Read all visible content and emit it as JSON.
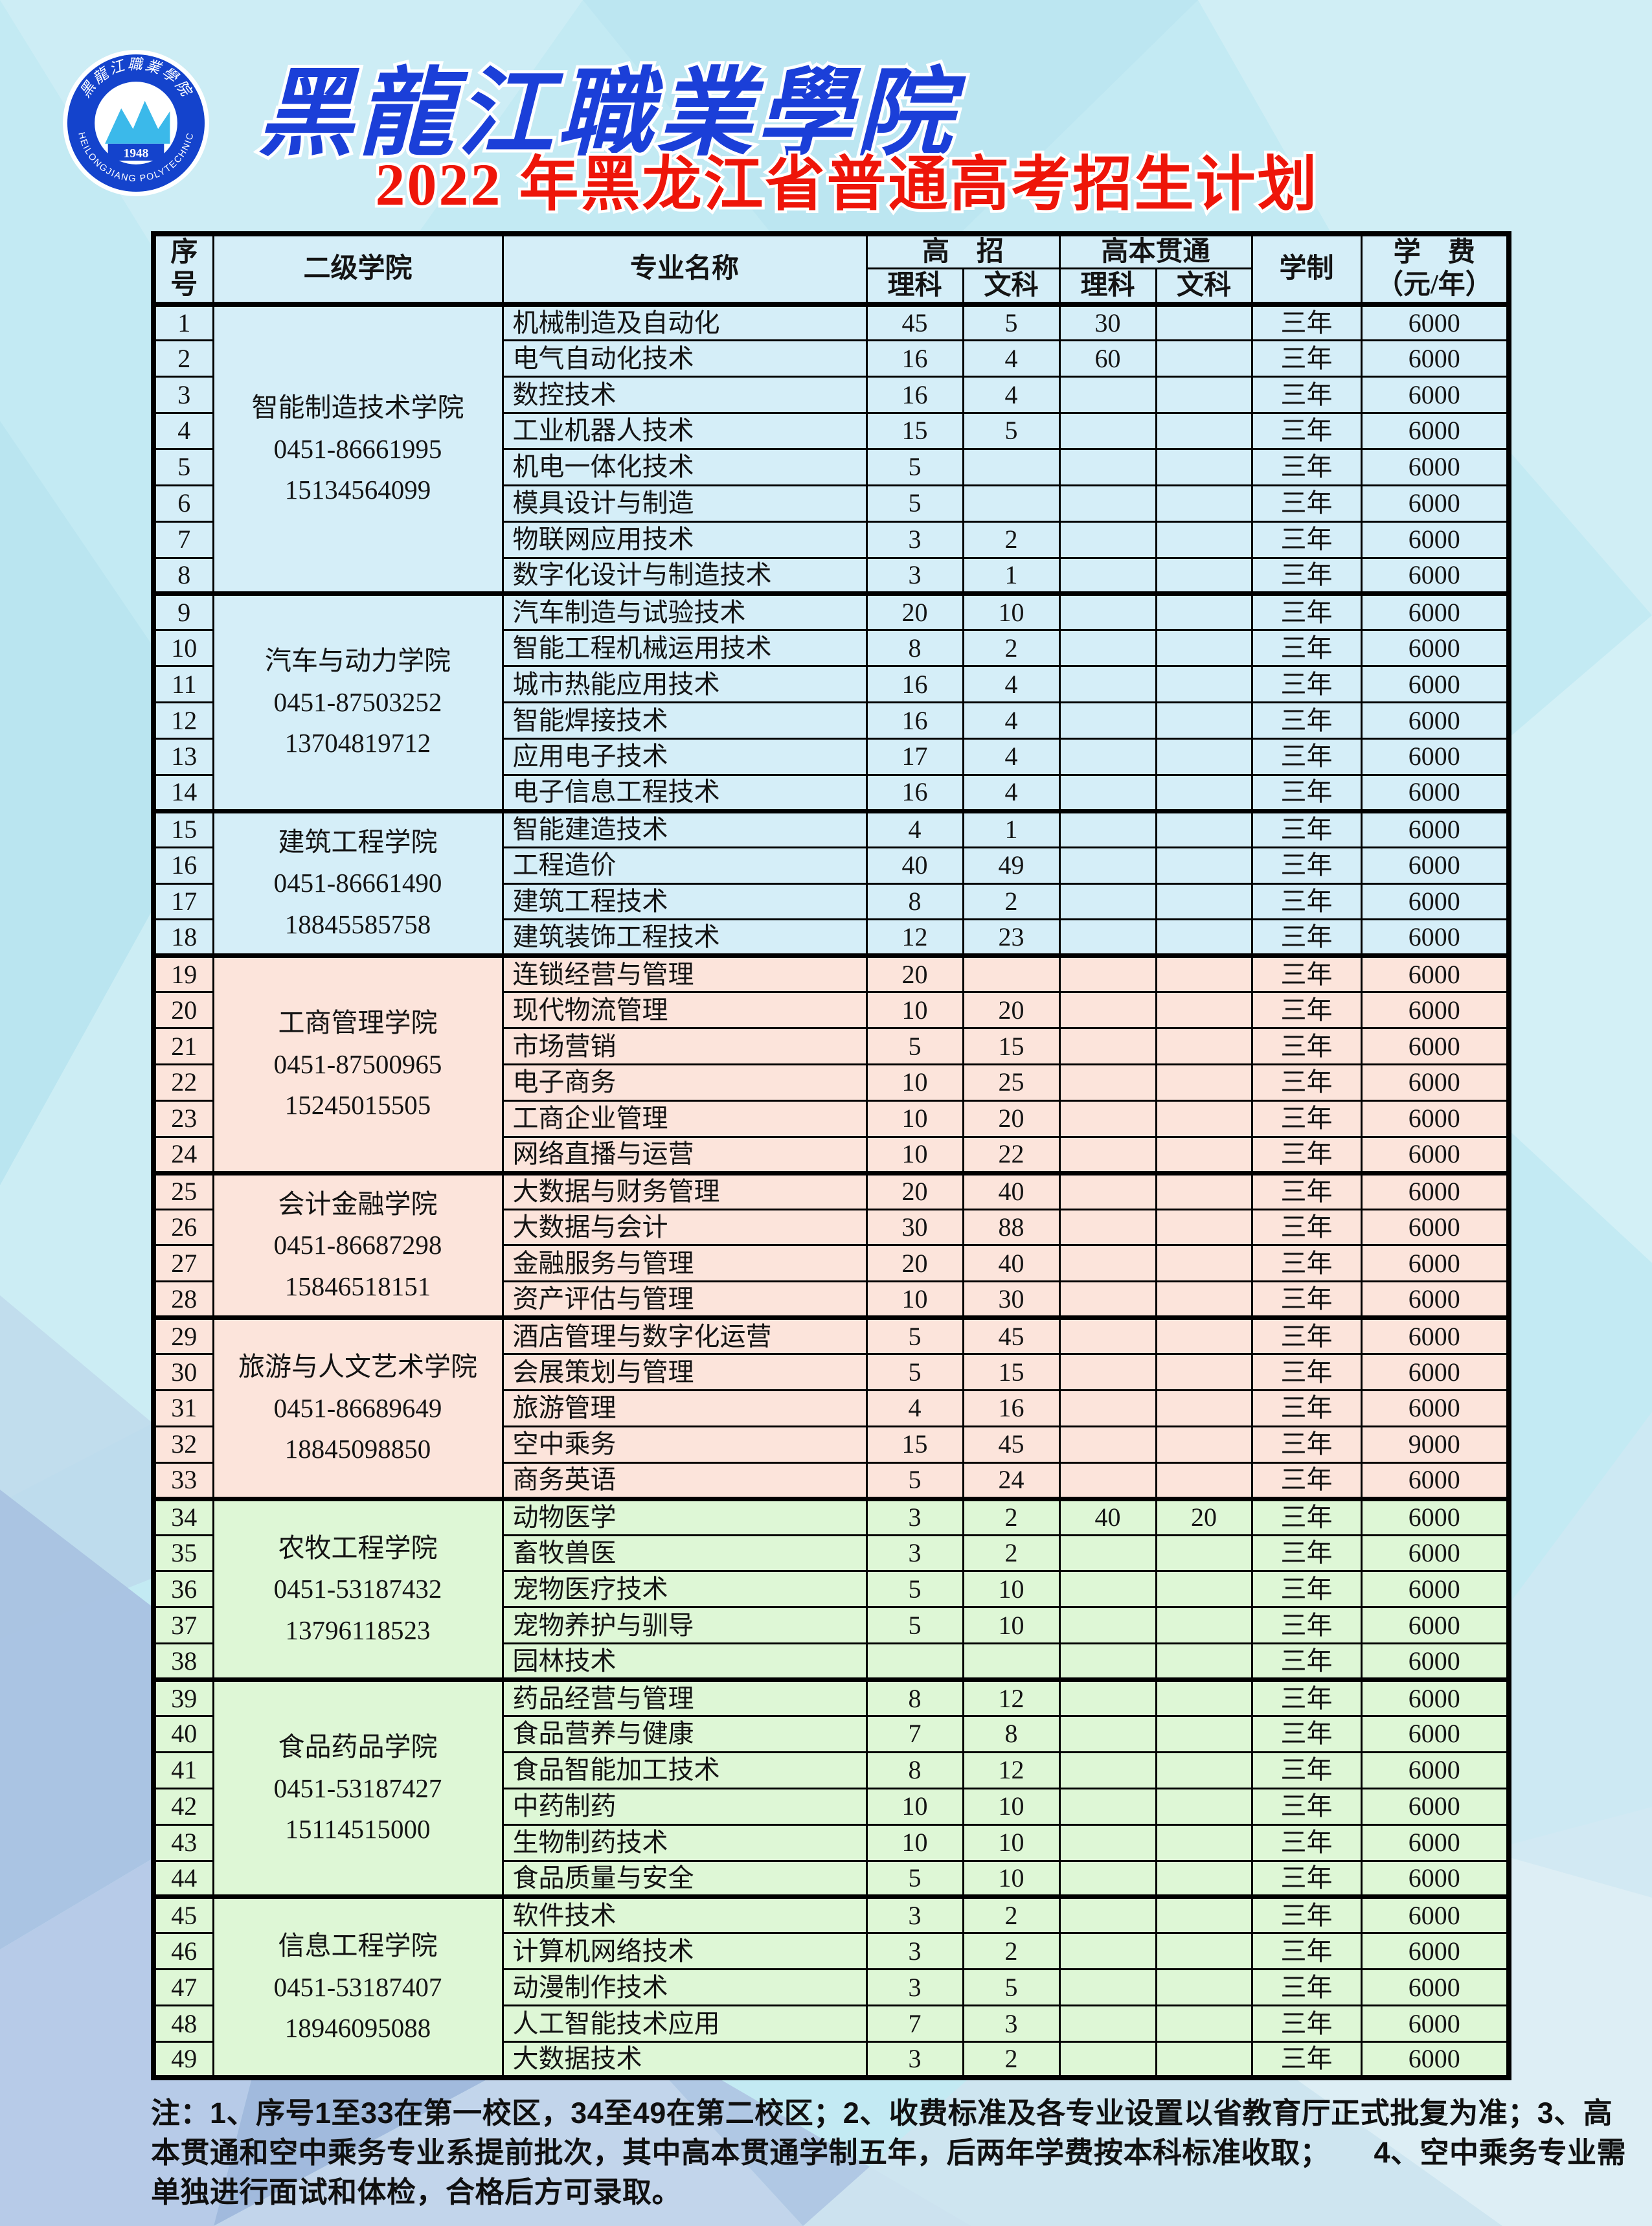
{
  "colors": {
    "band_blue": "#d5eef8",
    "band_pink": "#fce4db",
    "band_green": "#def7d6",
    "title_red": "#ee1509",
    "school_blue": "#1b3fd8",
    "logo_blue": "#1443cc",
    "logo_cyan": "#3bb9ea",
    "bg_base": "#c3eaf3"
  },
  "header": {
    "school_name": "黑龍江職業學院",
    "title": "2022 年黑龙江省普通高考招生计划",
    "logo": {
      "year": "1948",
      "ring_text_cn": "黑龍江職業學院",
      "ring_text_en": "HEILONGJIANG POLYTECHNIC"
    }
  },
  "table": {
    "header": {
      "no": "序号",
      "college": "二级学院",
      "major": "专业名称",
      "gaozhao": "高　招",
      "guantong": "高本贯通",
      "subjects": [
        "理科",
        "文科",
        "理科",
        "文科"
      ],
      "duration": "学制",
      "fee1": "学　费",
      "fee2": "（元/年）"
    },
    "groups": [
      {
        "college": "智能制造技术学院",
        "phones": [
          "0451-86661995",
          "15134564099"
        ],
        "band": "blue",
        "rows": [
          {
            "no": "1",
            "major": "机械制造及自动化",
            "sci": "45",
            "arts": "5",
            "gt_sci": "30",
            "gt_arts": "",
            "duration": "三年",
            "fee": "6000"
          },
          {
            "no": "2",
            "major": "电气自动化技术",
            "sci": "16",
            "arts": "4",
            "gt_sci": "60",
            "gt_arts": "",
            "duration": "三年",
            "fee": "6000"
          },
          {
            "no": "3",
            "major": "数控技术",
            "sci": "16",
            "arts": "4",
            "gt_sci": "",
            "gt_arts": "",
            "duration": "三年",
            "fee": "6000"
          },
          {
            "no": "4",
            "major": "工业机器人技术",
            "sci": "15",
            "arts": "5",
            "gt_sci": "",
            "gt_arts": "",
            "duration": "三年",
            "fee": "6000"
          },
          {
            "no": "5",
            "major": "机电一体化技术",
            "sci": "5",
            "arts": "",
            "gt_sci": "",
            "gt_arts": "",
            "duration": "三年",
            "fee": "6000"
          },
          {
            "no": "6",
            "major": "模具设计与制造",
            "sci": "5",
            "arts": "",
            "gt_sci": "",
            "gt_arts": "",
            "duration": "三年",
            "fee": "6000"
          },
          {
            "no": "7",
            "major": "物联网应用技术",
            "sci": "3",
            "arts": "2",
            "gt_sci": "",
            "gt_arts": "",
            "duration": "三年",
            "fee": "6000"
          },
          {
            "no": "8",
            "major": "数字化设计与制造技术",
            "sci": "3",
            "arts": "1",
            "gt_sci": "",
            "gt_arts": "",
            "duration": "三年",
            "fee": "6000"
          }
        ]
      },
      {
        "college": "汽车与动力学院",
        "phones": [
          "0451-87503252",
          "13704819712"
        ],
        "band": "blue",
        "rows": [
          {
            "no": "9",
            "major": "汽车制造与试验技术",
            "sci": "20",
            "arts": "10",
            "gt_sci": "",
            "gt_arts": "",
            "duration": "三年",
            "fee": "6000"
          },
          {
            "no": "10",
            "major": "智能工程机械运用技术",
            "sci": "8",
            "arts": "2",
            "gt_sci": "",
            "gt_arts": "",
            "duration": "三年",
            "fee": "6000"
          },
          {
            "no": "11",
            "major": "城市热能应用技术",
            "sci": "16",
            "arts": "4",
            "gt_sci": "",
            "gt_arts": "",
            "duration": "三年",
            "fee": "6000"
          },
          {
            "no": "12",
            "major": "智能焊接技术",
            "sci": "16",
            "arts": "4",
            "gt_sci": "",
            "gt_arts": "",
            "duration": "三年",
            "fee": "6000"
          },
          {
            "no": "13",
            "major": "应用电子技术",
            "sci": "17",
            "arts": "4",
            "gt_sci": "",
            "gt_arts": "",
            "duration": "三年",
            "fee": "6000"
          },
          {
            "no": "14",
            "major": "电子信息工程技术",
            "sci": "16",
            "arts": "4",
            "gt_sci": "",
            "gt_arts": "",
            "duration": "三年",
            "fee": "6000"
          }
        ]
      },
      {
        "college": "建筑工程学院",
        "phones": [
          "0451-86661490",
          "18845585758"
        ],
        "band": "blue",
        "rows": [
          {
            "no": "15",
            "major": "智能建造技术",
            "sci": "4",
            "arts": "1",
            "gt_sci": "",
            "gt_arts": "",
            "duration": "三年",
            "fee": "6000"
          },
          {
            "no": "16",
            "major": "工程造价",
            "sci": "40",
            "arts": "49",
            "gt_sci": "",
            "gt_arts": "",
            "duration": "三年",
            "fee": "6000"
          },
          {
            "no": "17",
            "major": "建筑工程技术",
            "sci": "8",
            "arts": "2",
            "gt_sci": "",
            "gt_arts": "",
            "duration": "三年",
            "fee": "6000"
          },
          {
            "no": "18",
            "major": "建筑装饰工程技术",
            "sci": "12",
            "arts": "23",
            "gt_sci": "",
            "gt_arts": "",
            "duration": "三年",
            "fee": "6000"
          }
        ]
      },
      {
        "college": "工商管理学院",
        "phones": [
          "0451-87500965",
          "15245015505"
        ],
        "band": "pink",
        "rows": [
          {
            "no": "19",
            "major": "连锁经营与管理",
            "sci": "20",
            "arts": "",
            "gt_sci": "",
            "gt_arts": "",
            "duration": "三年",
            "fee": "6000"
          },
          {
            "no": "20",
            "major": "现代物流管理",
            "sci": "10",
            "arts": "20",
            "gt_sci": "",
            "gt_arts": "",
            "duration": "三年",
            "fee": "6000"
          },
          {
            "no": "21",
            "major": "市场营销",
            "sci": "5",
            "arts": "15",
            "gt_sci": "",
            "gt_arts": "",
            "duration": "三年",
            "fee": "6000"
          },
          {
            "no": "22",
            "major": "电子商务",
            "sci": "10",
            "arts": "25",
            "gt_sci": "",
            "gt_arts": "",
            "duration": "三年",
            "fee": "6000"
          },
          {
            "no": "23",
            "major": "工商企业管理",
            "sci": "10",
            "arts": "20",
            "gt_sci": "",
            "gt_arts": "",
            "duration": "三年",
            "fee": "6000"
          },
          {
            "no": "24",
            "major": "网络直播与运营",
            "sci": "10",
            "arts": "22",
            "gt_sci": "",
            "gt_arts": "",
            "duration": "三年",
            "fee": "6000"
          }
        ]
      },
      {
        "college": "会计金融学院",
        "phones": [
          "0451-86687298",
          "15846518151"
        ],
        "band": "pink",
        "rows": [
          {
            "no": "25",
            "major": "大数据与财务管理",
            "sci": "20",
            "arts": "40",
            "gt_sci": "",
            "gt_arts": "",
            "duration": "三年",
            "fee": "6000"
          },
          {
            "no": "26",
            "major": "大数据与会计",
            "sci": "30",
            "arts": "88",
            "gt_sci": "",
            "gt_arts": "",
            "duration": "三年",
            "fee": "6000"
          },
          {
            "no": "27",
            "major": "金融服务与管理",
            "sci": "20",
            "arts": "40",
            "gt_sci": "",
            "gt_arts": "",
            "duration": "三年",
            "fee": "6000"
          },
          {
            "no": "28",
            "major": "资产评估与管理",
            "sci": "10",
            "arts": "30",
            "gt_sci": "",
            "gt_arts": "",
            "duration": "三年",
            "fee": "6000"
          }
        ]
      },
      {
        "college": "旅游与人文艺术学院",
        "phones": [
          "0451-86689649",
          "18845098850"
        ],
        "band": "pink",
        "rows": [
          {
            "no": "29",
            "major": "酒店管理与数字化运营",
            "sci": "5",
            "arts": "45",
            "gt_sci": "",
            "gt_arts": "",
            "duration": "三年",
            "fee": "6000"
          },
          {
            "no": "30",
            "major": "会展策划与管理",
            "sci": "5",
            "arts": "15",
            "gt_sci": "",
            "gt_arts": "",
            "duration": "三年",
            "fee": "6000"
          },
          {
            "no": "31",
            "major": "旅游管理",
            "sci": "4",
            "arts": "16",
            "gt_sci": "",
            "gt_arts": "",
            "duration": "三年",
            "fee": "6000"
          },
          {
            "no": "32",
            "major": "空中乘务",
            "sci": "15",
            "arts": "45",
            "gt_sci": "",
            "gt_arts": "",
            "duration": "三年",
            "fee": "9000"
          },
          {
            "no": "33",
            "major": "商务英语",
            "sci": "5",
            "arts": "24",
            "gt_sci": "",
            "gt_arts": "",
            "duration": "三年",
            "fee": "6000"
          }
        ]
      },
      {
        "college": "农牧工程学院",
        "phones": [
          "0451-53187432",
          "13796118523"
        ],
        "band": "green",
        "rows": [
          {
            "no": "34",
            "major": "动物医学",
            "sci": "3",
            "arts": "2",
            "gt_sci": "40",
            "gt_arts": "20",
            "duration": "三年",
            "fee": "6000"
          },
          {
            "no": "35",
            "major": "畜牧兽医",
            "sci": "3",
            "arts": "2",
            "gt_sci": "",
            "gt_arts": "",
            "duration": "三年",
            "fee": "6000"
          },
          {
            "no": "36",
            "major": "宠物医疗技术",
            "sci": "5",
            "arts": "10",
            "gt_sci": "",
            "gt_arts": "",
            "duration": "三年",
            "fee": "6000"
          },
          {
            "no": "37",
            "major": "宠物养护与驯导",
            "sci": "5",
            "arts": "10",
            "gt_sci": "",
            "gt_arts": "",
            "duration": "三年",
            "fee": "6000"
          },
          {
            "no": "38",
            "major": "园林技术",
            "sci": "",
            "arts": "",
            "gt_sci": "",
            "gt_arts": "",
            "duration": "三年",
            "fee": "6000"
          }
        ]
      },
      {
        "college": "食品药品学院",
        "phones": [
          "0451-53187427",
          "15114515000"
        ],
        "band": "green",
        "rows": [
          {
            "no": "39",
            "major": "药品经营与管理",
            "sci": "8",
            "arts": "12",
            "gt_sci": "",
            "gt_arts": "",
            "duration": "三年",
            "fee": "6000"
          },
          {
            "no": "40",
            "major": "食品营养与健康",
            "sci": "7",
            "arts": "8",
            "gt_sci": "",
            "gt_arts": "",
            "duration": "三年",
            "fee": "6000"
          },
          {
            "no": "41",
            "major": "食品智能加工技术",
            "sci": "8",
            "arts": "12",
            "gt_sci": "",
            "gt_arts": "",
            "duration": "三年",
            "fee": "6000"
          },
          {
            "no": "42",
            "major": "中药制药",
            "sci": "10",
            "arts": "10",
            "gt_sci": "",
            "gt_arts": "",
            "duration": "三年",
            "fee": "6000"
          },
          {
            "no": "43",
            "major": "生物制药技术",
            "sci": "10",
            "arts": "10",
            "gt_sci": "",
            "gt_arts": "",
            "duration": "三年",
            "fee": "6000"
          },
          {
            "no": "44",
            "major": "食品质量与安全",
            "sci": "5",
            "arts": "10",
            "gt_sci": "",
            "gt_arts": "",
            "duration": "三年",
            "fee": "6000"
          }
        ]
      },
      {
        "college": "信息工程学院",
        "phones": [
          "0451-53187407",
          "18946095088"
        ],
        "band": "green",
        "rows": [
          {
            "no": "45",
            "major": "软件技术",
            "sci": "3",
            "arts": "2",
            "gt_sci": "",
            "gt_arts": "",
            "duration": "三年",
            "fee": "6000"
          },
          {
            "no": "46",
            "major": "计算机网络技术",
            "sci": "3",
            "arts": "2",
            "gt_sci": "",
            "gt_arts": "",
            "duration": "三年",
            "fee": "6000"
          },
          {
            "no": "47",
            "major": "动漫制作技术",
            "sci": "3",
            "arts": "5",
            "gt_sci": "",
            "gt_arts": "",
            "duration": "三年",
            "fee": "6000"
          },
          {
            "no": "48",
            "major": "人工智能技术应用",
            "sci": "7",
            "arts": "3",
            "gt_sci": "",
            "gt_arts": "",
            "duration": "三年",
            "fee": "6000"
          },
          {
            "no": "49",
            "major": "大数据技术",
            "sci": "3",
            "arts": "2",
            "gt_sci": "",
            "gt_arts": "",
            "duration": "三年",
            "fee": "6000"
          }
        ]
      }
    ]
  },
  "notes": [
    "注：1、序号1至33在第一校区，34至49在第二校区；2、收费标准及各专业设置以省教育厅正式批复为准；3、高",
    "本贯通和空中乘务专业系提前批次，其中高本贯通学制五年，后两年学费按本科标准收取；　　4、空中乘务专业需",
    "单独进行面试和体检，合格后方可录取。"
  ]
}
